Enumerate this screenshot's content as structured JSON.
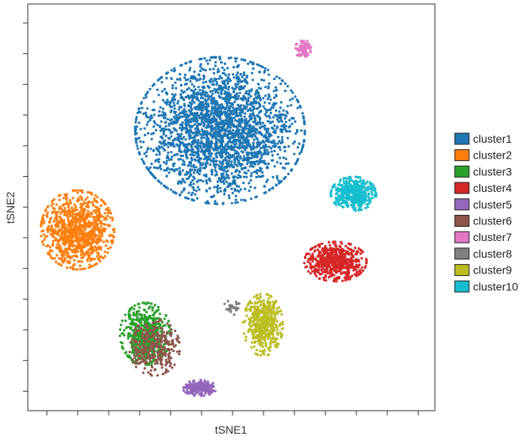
{
  "chart_data": {
    "type": "scatter",
    "title": "",
    "xlabel": "tSNE1",
    "ylabel": "tSNE2",
    "grid": false,
    "tick_labels_shown": false,
    "legend_position": "right",
    "legend": [
      {
        "name": "cluster1",
        "color": "#1f77b4"
      },
      {
        "name": "cluster2",
        "color": "#ff7f0e"
      },
      {
        "name": "cluster3",
        "color": "#2ca02c"
      },
      {
        "name": "cluster4",
        "color": "#d62728"
      },
      {
        "name": "cluster5",
        "color": "#9467bd"
      },
      {
        "name": "cluster6",
        "color": "#8c564b"
      },
      {
        "name": "cluster7",
        "color": "#e377c2"
      },
      {
        "name": "cluster8",
        "color": "#7f7f7f"
      },
      {
        "name": "cluster9",
        "color": "#bcbd22"
      },
      {
        "name": "cluster10",
        "color": "#17becf"
      }
    ],
    "series": [
      {
        "name": "cluster1",
        "color": "#1f77b4",
        "centroid": [
          -2.5,
          17
        ],
        "spread": [
          15,
          13
        ],
        "n": 2600
      },
      {
        "name": "cluster2",
        "color": "#ff7f0e",
        "centroid": [
          -34,
          -5
        ],
        "spread": [
          6.5,
          7
        ],
        "n": 1000
      },
      {
        "name": "cluster3",
        "color": "#2ca02c",
        "centroid": [
          -19,
          -28
        ],
        "spread": [
          4.5,
          5.5
        ],
        "n": 550
      },
      {
        "name": "cluster4",
        "color": "#d62728",
        "centroid": [
          23,
          -12
        ],
        "spread": [
          5.5,
          3.5
        ],
        "n": 600
      },
      {
        "name": "cluster5",
        "color": "#9467bd",
        "centroid": [
          -7,
          -40
        ],
        "spread": [
          3,
          1.4
        ],
        "n": 220
      },
      {
        "name": "cluster6",
        "color": "#8c564b",
        "centroid": [
          -17,
          -31
        ],
        "spread": [
          4.5,
          5
        ],
        "n": 320
      },
      {
        "name": "cluster7",
        "color": "#e377c2",
        "centroid": [
          16,
          35
        ],
        "spread": [
          1.6,
          1.6
        ],
        "n": 90
      },
      {
        "name": "cluster8",
        "color": "#7f7f7f",
        "centroid": [
          0,
          -22
        ],
        "spread": [
          1.5,
          1.5
        ],
        "n": 30
      },
      {
        "name": "cluster9",
        "color": "#bcbd22",
        "centroid": [
          7,
          -26
        ],
        "spread": [
          3.5,
          5.5
        ],
        "n": 500
      },
      {
        "name": "cluster10",
        "color": "#17becf",
        "centroid": [
          27,
          3
        ],
        "spread": [
          4,
          3
        ],
        "n": 480
      }
    ],
    "xlim": [
      -45,
      45
    ],
    "ylim": [
      -45,
      45
    ]
  }
}
